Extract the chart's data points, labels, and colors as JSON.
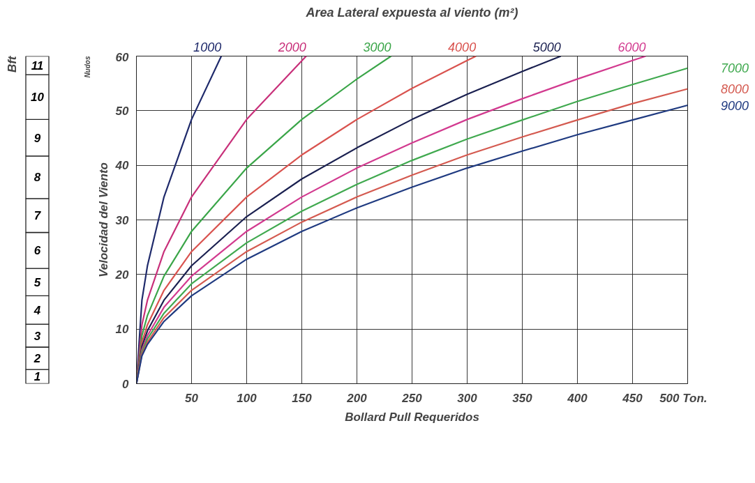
{
  "chart_data": [
    {
      "type": "bar",
      "stacked": true,
      "title": "Bft",
      "categories": [
        null
      ],
      "ylim": [
        0,
        60
      ],
      "tick_labels": false,
      "annotations": [
        "1",
        "2",
        "3",
        "4",
        "5",
        "6",
        "7",
        "8",
        "9",
        "10",
        "11"
      ],
      "series": [
        {
          "color": "#ffffff",
          "values": [
            2.6
          ]
        },
        {
          "color": "#ffffff",
          "values": [
            4.1
          ]
        },
        {
          "color": "#ffffff",
          "values": [
            4.2
          ]
        },
        {
          "color": "#ffffff",
          "values": [
            5.2
          ]
        },
        {
          "color": "#ffffff",
          "values": [
            5.0
          ]
        },
        {
          "color": "#ffffff",
          "values": [
            6.6
          ]
        },
        {
          "color": "#ffffff",
          "values": [
            6.2
          ]
        },
        {
          "color": "#ffffff",
          "values": [
            7.8
          ]
        },
        {
          "color": "#ffffff",
          "values": [
            6.7
          ]
        },
        {
          "color": "#ffffff",
          "values": [
            8.2
          ]
        },
        {
          "color": "#ffffff",
          "values": [
            3.4
          ]
        }
      ]
    },
    {
      "type": "line",
      "legend_title": "Area Lateral expuesta al viento (m²)",
      "xlabel": "Bollard Pull Requeridos",
      "ylabel": "Velocidad del Viento",
      "annotations": [
        "Nudos"
      ],
      "xlim": [
        0,
        500
      ],
      "xticks": [
        50,
        100,
        150,
        200,
        250,
        300,
        350,
        400,
        450,
        {
          "value": 500,
          "label": "500 Ton."
        }
      ],
      "ylim": [
        0,
        60
      ],
      "yticks": [
        0,
        10,
        20,
        30,
        40,
        50,
        60
      ],
      "grid": true,
      "marker": "none",
      "line_style": "solid",
      "series": [
        {
          "name": "1000",
          "color": "#1f2a6b",
          "x": [
            0,
            5,
            10,
            25,
            50,
            77
          ],
          "values": [
            0,
            15.3,
            21.6,
            34.2,
            48.4,
            60
          ]
        },
        {
          "name": "2000",
          "color": "#c8307a",
          "x": [
            0,
            5,
            10,
            25,
            50,
            100,
            154
          ],
          "values": [
            0,
            10.8,
            15.3,
            24.2,
            34.2,
            48.4,
            60
          ]
        },
        {
          "name": "3000",
          "color": "#3aa548",
          "x": [
            0,
            5,
            10,
            25,
            50,
            100,
            150,
            200,
            231
          ],
          "values": [
            0,
            8.8,
            12.5,
            19.7,
            27.9,
            39.5,
            48.4,
            55.8,
            60
          ]
        },
        {
          "name": "4000",
          "color": "#d9534f",
          "x": [
            0,
            5,
            10,
            25,
            50,
            100,
            150,
            200,
            250,
            300,
            308
          ],
          "values": [
            0,
            7.6,
            10.8,
            17.1,
            24.2,
            34.2,
            41.9,
            48.4,
            54.1,
            59.2,
            60
          ]
        },
        {
          "name": "5000",
          "color": "#1a2050",
          "x": [
            0,
            5,
            10,
            25,
            50,
            100,
            150,
            200,
            250,
            300,
            350,
            385
          ],
          "values": [
            0,
            6.8,
            9.7,
            15.3,
            21.6,
            30.6,
            37.5,
            43.2,
            48.4,
            53.0,
            57.2,
            60
          ]
        },
        {
          "name": "6000",
          "color": "#d23a8f",
          "x": [
            0,
            5,
            10,
            25,
            50,
            100,
            150,
            200,
            250,
            300,
            350,
            400,
            450,
            462
          ],
          "values": [
            0,
            6.2,
            8.8,
            14.0,
            19.7,
            27.9,
            34.2,
            39.5,
            44.1,
            48.4,
            52.2,
            55.8,
            59.2,
            60
          ]
        },
        {
          "name": "7000",
          "color": "#40a94f",
          "x": [
            0,
            5,
            10,
            25,
            50,
            100,
            150,
            200,
            250,
            300,
            350,
            400,
            450,
            500
          ],
          "values": [
            0,
            5.8,
            8.2,
            12.9,
            18.3,
            25.8,
            31.6,
            36.5,
            40.9,
            44.8,
            48.3,
            51.7,
            54.8,
            57.8
          ]
        },
        {
          "name": "8000",
          "color": "#d45a50",
          "x": [
            0,
            5,
            10,
            25,
            50,
            100,
            150,
            200,
            250,
            300,
            350,
            400,
            450,
            500
          ],
          "values": [
            0,
            5.4,
            7.6,
            12.1,
            17.1,
            24.2,
            29.6,
            34.2,
            38.2,
            41.9,
            45.2,
            48.3,
            51.3,
            54.0
          ]
        },
        {
          "name": "9000",
          "color": "#1f3a80",
          "x": [
            0,
            5,
            10,
            25,
            50,
            100,
            150,
            200,
            250,
            300,
            350,
            400,
            450,
            500
          ],
          "values": [
            0,
            5.1,
            7.2,
            11.4,
            16.1,
            22.8,
            27.9,
            32.2,
            36.0,
            39.5,
            42.6,
            45.6,
            48.3,
            51.0
          ]
        }
      ]
    }
  ]
}
